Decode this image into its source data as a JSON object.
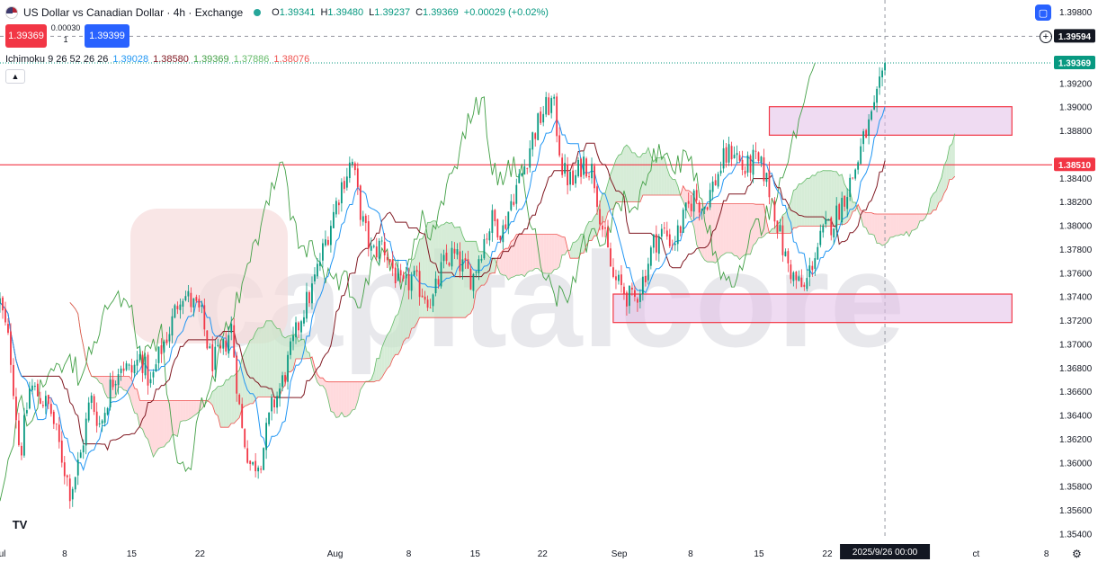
{
  "header": {
    "title": "US Dollar vs Canadian Dollar · 4h · Exchange",
    "ohlc": [
      {
        "k": "O",
        "v": "1.39341"
      },
      {
        "k": "H",
        "v": "1.39480"
      },
      {
        "k": "L",
        "v": "1.39237"
      },
      {
        "k": "C",
        "v": "1.39369"
      }
    ],
    "change": "+0.00029 (+0.02%)"
  },
  "trade": {
    "sell": "1.39369",
    "spread": "0.00030",
    "qty": "1",
    "buy": "1.39399"
  },
  "ichimoku": {
    "label": "Ichimoku 9 26 52 26 26",
    "values": [
      {
        "v": "1.39028",
        "color": "#2196f3"
      },
      {
        "v": "1.38580",
        "color": "#801922"
      },
      {
        "v": "1.39369",
        "color": "#43a047"
      },
      {
        "v": "1.37886",
        "color": "#66bb6a"
      },
      {
        "v": "1.38076",
        "color": "#ef5350"
      }
    ]
  },
  "logo": "TV",
  "watermark": "capitalcore",
  "chart_data": {
    "type": "candlestick",
    "symbol": "USDCAD",
    "timeframe": "4h",
    "ylim": [
      1.3535,
      1.399
    ],
    "y_ticks": [
      "1.39800",
      "1.39200",
      "1.39000",
      "1.38800",
      "1.38400",
      "1.38200",
      "1.38000",
      "1.37800",
      "1.37600",
      "1.37400",
      "1.37200",
      "1.37000",
      "1.36800",
      "1.36600",
      "1.36400",
      "1.36200",
      "1.36000",
      "1.35800",
      "1.35600",
      "1.35400"
    ],
    "y_tick_values": [
      1.398,
      1.392,
      1.39,
      1.388,
      1.384,
      1.382,
      1.38,
      1.378,
      1.376,
      1.374,
      1.372,
      1.37,
      1.368,
      1.366,
      1.364,
      1.362,
      1.36,
      1.358,
      1.356,
      1.354
    ],
    "x_ticks": [
      {
        "label": "Jul",
        "x": 0.0
      },
      {
        "label": "8",
        "x": 0.0965
      },
      {
        "label": "15",
        "x": 0.1965
      },
      {
        "label": "22",
        "x": 0.2985
      },
      {
        "label": "Aug",
        "x": 0.5
      },
      {
        "label": "8",
        "x": 0.61
      },
      {
        "label": "15",
        "x": 0.709
      },
      {
        "label": "22",
        "x": 0.8095
      },
      {
        "label": "Sep",
        "x": 0.924
      },
      {
        "label": "8",
        "x": 1.0305
      },
      {
        "label": "15",
        "x": 1.1325
      },
      {
        "label": "22",
        "x": 1.2345
      },
      {
        "label": "ct",
        "x": 1.4565
      },
      {
        "label": "8",
        "x": 1.5615
      }
    ],
    "cursor": {
      "label": "2025/9/26   00:00",
      "x": 1.3205
    },
    "horizontal_line": {
      "value": 1.3851,
      "label": "1.38510"
    },
    "dashed_line": {
      "value": 1.39594,
      "label": "1.39594"
    },
    "last_price": {
      "value": 1.39369,
      "label": "1.39369"
    },
    "zones": [
      {
        "x0": 1.148,
        "x1": 1.51,
        "y_low": 1.3876,
        "y_high": 1.39
      },
      {
        "x0": 0.915,
        "x1": 1.51,
        "y_low": 1.3718,
        "y_high": 1.3742
      }
    ],
    "price_anchors": [
      [
        0.0,
        1.3735
      ],
      [
        0.015,
        1.3695
      ],
      [
        0.03,
        1.3605
      ],
      [
        0.045,
        1.3665
      ],
      [
        0.06,
        1.3655
      ],
      [
        0.075,
        1.3645
      ],
      [
        0.09,
        1.361
      ],
      [
        0.105,
        1.3575
      ],
      [
        0.12,
        1.3605
      ],
      [
        0.135,
        1.3655
      ],
      [
        0.15,
        1.363
      ],
      [
        0.165,
        1.3665
      ],
      [
        0.18,
        1.3685
      ],
      [
        0.195,
        1.3675
      ],
      [
        0.21,
        1.369
      ],
      [
        0.225,
        1.3665
      ],
      [
        0.24,
        1.3695
      ],
      [
        0.255,
        1.3715
      ],
      [
        0.27,
        1.3745
      ],
      [
        0.285,
        1.3735
      ],
      [
        0.3,
        1.3725
      ],
      [
        0.315,
        1.3685
      ],
      [
        0.33,
        1.369
      ],
      [
        0.345,
        1.3715
      ],
      [
        0.36,
        1.363
      ],
      [
        0.375,
        1.3595
      ],
      [
        0.39,
        1.3605
      ],
      [
        0.405,
        1.3645
      ],
      [
        0.42,
        1.3665
      ],
      [
        0.435,
        1.3695
      ],
      [
        0.45,
        1.3725
      ],
      [
        0.465,
        1.3745
      ],
      [
        0.48,
        1.3775
      ],
      [
        0.495,
        1.3805
      ],
      [
        0.51,
        1.3835
      ],
      [
        0.525,
        1.3855
      ],
      [
        0.54,
        1.3805
      ],
      [
        0.555,
        1.3775
      ],
      [
        0.57,
        1.3785
      ],
      [
        0.585,
        1.3765
      ],
      [
        0.6,
        1.3745
      ],
      [
        0.615,
        1.3755
      ],
      [
        0.63,
        1.3745
      ],
      [
        0.645,
        1.3735
      ],
      [
        0.66,
        1.3765
      ],
      [
        0.675,
        1.3775
      ],
      [
        0.69,
        1.3765
      ],
      [
        0.705,
        1.3755
      ],
      [
        0.72,
        1.3785
      ],
      [
        0.735,
        1.3805
      ],
      [
        0.75,
        1.3795
      ],
      [
        0.765,
        1.3825
      ],
      [
        0.78,
        1.3845
      ],
      [
        0.795,
        1.3875
      ],
      [
        0.81,
        1.3895
      ],
      [
        0.825,
        1.3905
      ],
      [
        0.84,
        1.3845
      ],
      [
        0.855,
        1.3835
      ],
      [
        0.87,
        1.3855
      ],
      [
        0.885,
        1.3845
      ],
      [
        0.9,
        1.3795
      ],
      [
        0.915,
        1.3755
      ],
      [
        0.93,
        1.3745
      ],
      [
        0.945,
        1.3735
      ],
      [
        0.96,
        1.3755
      ],
      [
        0.975,
        1.3785
      ],
      [
        0.99,
        1.3795
      ],
      [
        1.005,
        1.3785
      ],
      [
        1.02,
        1.3805
      ],
      [
        1.035,
        1.3825
      ],
      [
        1.05,
        1.3815
      ],
      [
        1.065,
        1.3835
      ],
      [
        1.08,
        1.3855
      ],
      [
        1.095,
        1.3865
      ],
      [
        1.11,
        1.3845
      ],
      [
        1.125,
        1.3855
      ],
      [
        1.14,
        1.3845
      ],
      [
        1.155,
        1.3815
      ],
      [
        1.17,
        1.3775
      ],
      [
        1.185,
        1.3755
      ],
      [
        1.2,
        1.3745
      ],
      [
        1.215,
        1.3775
      ],
      [
        1.23,
        1.3795
      ],
      [
        1.245,
        1.3805
      ],
      [
        1.26,
        1.3825
      ],
      [
        1.275,
        1.3845
      ],
      [
        1.29,
        1.3875
      ],
      [
        1.305,
        1.3895
      ],
      [
        1.3205,
        1.39369
      ]
    ],
    "ichimoku_lines": {
      "tenkan": {
        "color": "#2196f3"
      },
      "kijun": {
        "color": "#801922"
      },
      "chikou": {
        "color": "#43a047"
      },
      "span_a": {
        "color": "#66bb6a"
      },
      "span_b": {
        "color": "#ef5350"
      }
    }
  },
  "colors": {
    "up": "#089981",
    "down": "#f23645",
    "zone_fill": "#e1bee7",
    "zone_border": "#f23645",
    "cloud_bull": "#c8e6c9",
    "cloud_bear": "#ffcdd2"
  }
}
